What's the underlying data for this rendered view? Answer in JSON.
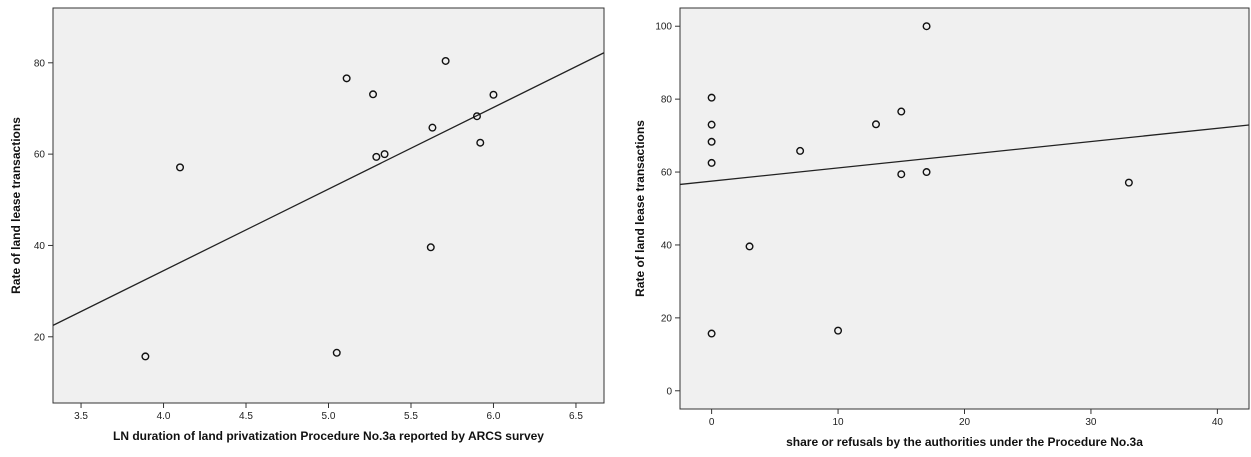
{
  "chart_data": [
    {
      "type": "scatter",
      "title": "",
      "xlabel": "LN duration of land privatization Procedure No.3a reported by ARCS survey",
      "ylabel": "Rate of land lease transactions",
      "xlim": [
        3.33,
        6.67
      ],
      "ylim": [
        5.5,
        92
      ],
      "xticks": [
        "3.5",
        "4.0",
        "4.5",
        "5.0",
        "5.5",
        "6.0",
        "6.5"
      ],
      "yticks": [
        "20",
        "40",
        "60",
        "80"
      ],
      "grid": false,
      "background": "#f0f0f0",
      "points": [
        {
          "x": 3.89,
          "y": 15.7
        },
        {
          "x": 4.1,
          "y": 57.1
        },
        {
          "x": 5.05,
          "y": 16.5
        },
        {
          "x": 5.11,
          "y": 76.6
        },
        {
          "x": 5.27,
          "y": 73.1
        },
        {
          "x": 5.29,
          "y": 59.4
        },
        {
          "x": 5.34,
          "y": 60.0
        },
        {
          "x": 5.62,
          "y": 39.6
        },
        {
          "x": 5.63,
          "y": 65.8
        },
        {
          "x": 5.71,
          "y": 80.4
        },
        {
          "x": 5.9,
          "y": 68.3
        },
        {
          "x": 5.92,
          "y": 62.5
        },
        {
          "x": 6.0,
          "y": 73.0
        }
      ],
      "fit_line": {
        "x": [
          3.33,
          6.67
        ],
        "y": [
          22.5,
          82.2
        ]
      }
    },
    {
      "type": "scatter",
      "title": "",
      "xlabel": "share or refusals by the authorities under the Procedure No.3a",
      "ylabel": "Rate of land lease transactions",
      "xlim": [
        -2.5,
        42.5
      ],
      "ylim": [
        -5,
        105
      ],
      "xticks": [
        "0",
        "10",
        "20",
        "30",
        "40"
      ],
      "yticks": [
        "0",
        "20",
        "40",
        "60",
        "80",
        "100"
      ],
      "grid": false,
      "background": "#f0f0f0",
      "points": [
        {
          "x": 0,
          "y": 80.4
        },
        {
          "x": 0,
          "y": 73.0
        },
        {
          "x": 0,
          "y": 68.3
        },
        {
          "x": 0,
          "y": 62.5
        },
        {
          "x": 0,
          "y": 15.7
        },
        {
          "x": 3,
          "y": 39.6
        },
        {
          "x": 7,
          "y": 65.8
        },
        {
          "x": 10,
          "y": 16.5
        },
        {
          "x": 13,
          "y": 73.1
        },
        {
          "x": 15,
          "y": 76.6
        },
        {
          "x": 15,
          "y": 59.4
        },
        {
          "x": 17,
          "y": 100.0
        },
        {
          "x": 17,
          "y": 60.0
        },
        {
          "x": 33,
          "y": 57.1
        }
      ],
      "fit_line": {
        "x": [
          -2.5,
          42.5
        ],
        "y": [
          56.6,
          72.9
        ]
      }
    }
  ]
}
